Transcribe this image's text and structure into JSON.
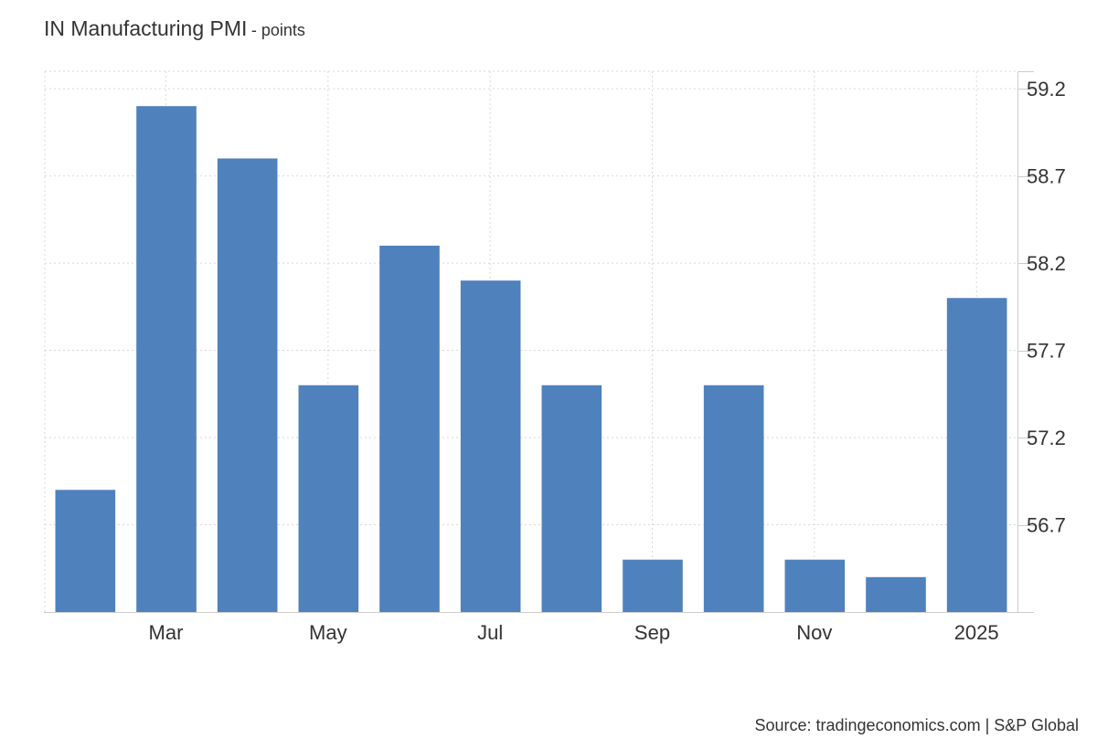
{
  "chart_data": {
    "type": "bar",
    "title": "IN Manufacturing PMI",
    "subtitle": "- points",
    "source": "Source: tradingeconomics.com | S&P Global",
    "categories": [
      "2024-02",
      "2024-03",
      "2024-04",
      "2024-05",
      "2024-06",
      "2024-07",
      "2024-08",
      "2024-09",
      "2024-10",
      "2024-11",
      "2024-12",
      "2025-01"
    ],
    "values": [
      56.9,
      59.1,
      58.8,
      57.5,
      58.3,
      58.1,
      57.5,
      56.5,
      57.5,
      56.5,
      56.4,
      58.0
    ],
    "x_tick_labels": [
      {
        "category": "2024-03",
        "label": "Mar"
      },
      {
        "category": "2024-05",
        "label": "May"
      },
      {
        "category": "2024-07",
        "label": "Jul"
      },
      {
        "category": "2024-09",
        "label": "Sep"
      },
      {
        "category": "2024-11",
        "label": "Nov"
      },
      {
        "category": "2025-01",
        "label": "2025"
      }
    ],
    "y_ticks": [
      56.7,
      57.2,
      57.7,
      58.2,
      58.7,
      59.2
    ],
    "ylim": [
      56.2,
      59.3
    ],
    "y_axis_position": "right",
    "grid": true,
    "bar_color": "#4f81bd",
    "xlabel": "",
    "ylabel": ""
  }
}
